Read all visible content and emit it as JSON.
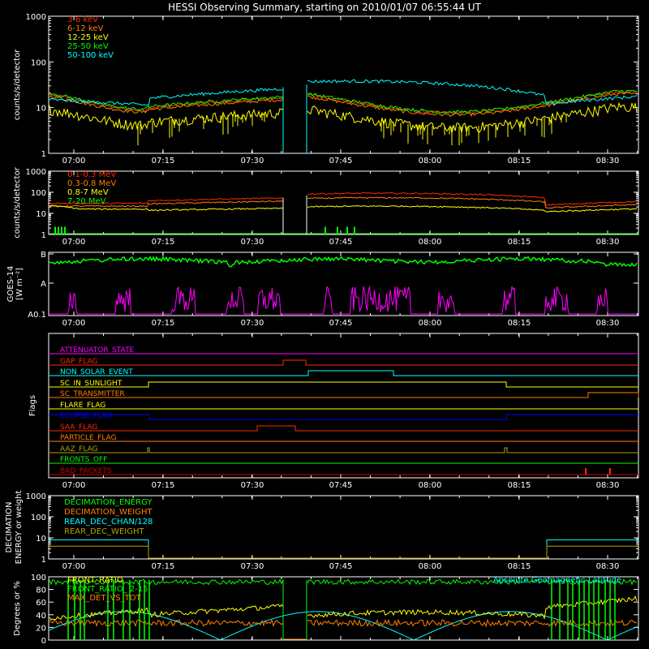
{
  "title": "HESSI Observing Summary, starting on 2010/01/07 06:55:44 UT",
  "time_ticks": [
    "07:00",
    "07:15",
    "07:30",
    "07:45",
    "08:00",
    "08:15",
    "08:30"
  ],
  "colors": {
    "red": "#ff2a00",
    "orange": "#ff7f00",
    "yellow": "#ffff00",
    "green": "#00ff00",
    "cyan": "#00ffff",
    "magenta": "#ff00ff",
    "blue": "#0000ff",
    "olive": "#b2a200",
    "white": "#ffffff",
    "darkred": "#d00000"
  },
  "chart_data": [
    {
      "id": "counts-low",
      "type": "line",
      "ylabel": "counts/s/detector",
      "yscale": "log",
      "ylim": [
        1,
        1000
      ],
      "yticks": [
        "1",
        "10",
        "100",
        "1000"
      ],
      "legend_placement": "top-left",
      "series": [
        {
          "name": "3-6 keV",
          "color": "#ff2a00"
        },
        {
          "name": "6-12 keV",
          "color": "#ff7f00"
        },
        {
          "name": "12-25 keV",
          "color": "#ffff00"
        },
        {
          "name": "25-50 keV",
          "color": "#00ff00"
        },
        {
          "name": "50-100 keV",
          "color": "#00ffff"
        }
      ]
    },
    {
      "id": "counts-high",
      "type": "line",
      "ylabel": "counts/s/detector",
      "yscale": "log",
      "ylim": [
        1,
        1000
      ],
      "yticks": [
        "1",
        "10",
        "100",
        "1000"
      ],
      "legend_placement": "top-left",
      "series": [
        {
          "name": "0.1-0.3 MeV",
          "color": "#ff2a00"
        },
        {
          "name": "0.3-0.8 MeV",
          "color": "#ff7f00"
        },
        {
          "name": "0.8-7 MeV",
          "color": "#ffff00"
        },
        {
          "name": "7-20 MeV",
          "color": "#00ff00"
        }
      ]
    },
    {
      "id": "goes",
      "type": "line",
      "ylabel": "GOES-14",
      "ylabel2": "[W m⁻²]",
      "yticks": [
        "A0.1",
        "A",
        "B"
      ]
    },
    {
      "id": "flags",
      "type": "line",
      "ylabel": "Flags",
      "flags": [
        {
          "name": "ATTENUATOR_STATE",
          "color": "#ff00ff"
        },
        {
          "name": "GAP_FLAG",
          "color": "#ff2a00"
        },
        {
          "name": "NON_SOLAR_EVENT",
          "color": "#00ffff"
        },
        {
          "name": "SC_IN_SUNLIGHT",
          "color": "#ffff00"
        },
        {
          "name": "SC_TRANSMITTER",
          "color": "#ff7f00"
        },
        {
          "name": "FLARE_FLAG",
          "color": "#ffff00"
        },
        {
          "name": "ECLIPSE_FLAG",
          "color": "#0000ff"
        },
        {
          "name": "SAA_FLAG",
          "color": "#ff2a00"
        },
        {
          "name": "PARTICLE_FLAG",
          "color": "#ff7f00"
        },
        {
          "name": "AAZ_FLAG",
          "color": "#b2a200"
        },
        {
          "name": "FRONTS_OFF",
          "color": "#00ff00"
        },
        {
          "name": "BAD_PACKETS",
          "color": "#d00000"
        }
      ]
    },
    {
      "id": "decimation",
      "type": "line",
      "ylabel": "DECIMATION",
      "ylabel2": "ENERGY or weight",
      "yscale": "log",
      "ylim": [
        1,
        1000
      ],
      "yticks": [
        "1",
        "10",
        "100",
        "1000"
      ],
      "series": [
        {
          "name": "DECIMATION_ENERGY",
          "color": "#00ff00"
        },
        {
          "name": "DECIMATION_WEIGHT",
          "color": "#ff7f00"
        },
        {
          "name": "REAR_DEC_CHAN/128",
          "color": "#00ffff"
        },
        {
          "name": "REAR_DEC_WEIGHT",
          "color": "#b2a200"
        }
      ]
    },
    {
      "id": "ratios",
      "type": "line",
      "ylabel": "Degrees or %",
      "ylim": [
        0,
        100
      ],
      "yticks": [
        "0",
        "20",
        "40",
        "60",
        "80",
        "100"
      ],
      "series": [
        {
          "name": "FRONT_RATIO",
          "color": "#ffff00"
        },
        {
          "name": "FRONT_RATIO_ 2-15",
          "color": "#00ff00"
        },
        {
          "name": "MAX_DET_VS_TOT",
          "color": "#ff7f00"
        },
        {
          "name": "Absolute Geomagnetic Latitude",
          "color": "#00ffff"
        }
      ]
    }
  ]
}
